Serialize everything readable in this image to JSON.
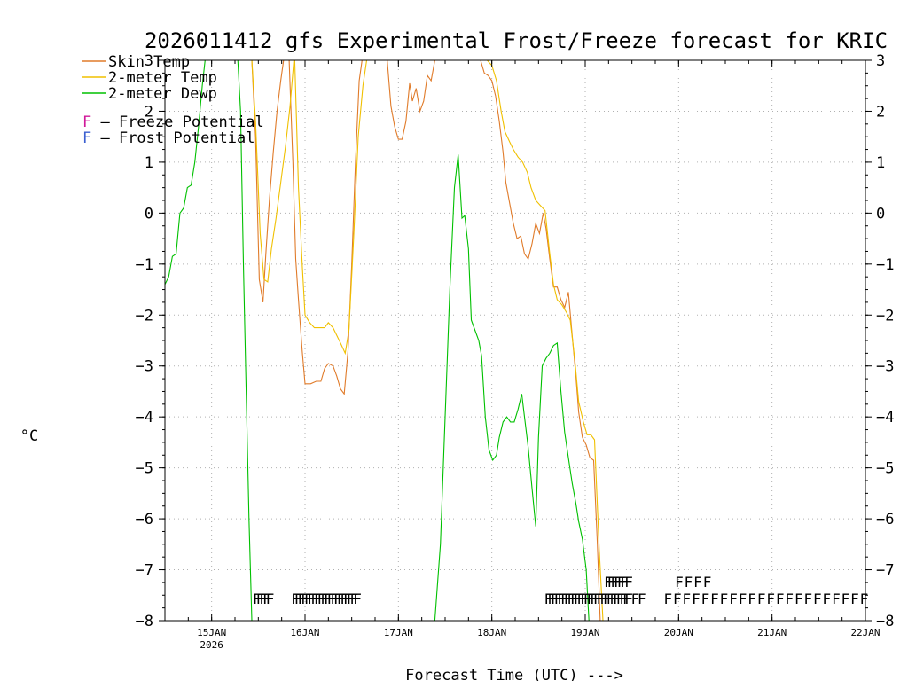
{
  "chart_data": {
    "type": "line",
    "title": "2026011412 gfs Experimental Frost/Freeze forecast for KRIC",
    "ylabel": "°C",
    "xlabel": "Forecast Time (UTC) --->",
    "ylim": [
      -8,
      3
    ],
    "yticks": [
      3,
      2,
      1,
      0,
      -1,
      -2,
      -3,
      -4,
      -5,
      -6,
      -7,
      -8
    ],
    "yticks_right": [
      3,
      2,
      1,
      0,
      -1,
      -2,
      -3,
      -4,
      -5,
      -6,
      -7,
      -8
    ],
    "xlim": [
      14.5,
      22.0
    ],
    "xticks": [
      {
        "x": 15,
        "label": "15JAN",
        "sub": "2026"
      },
      {
        "x": 16,
        "label": "16JAN",
        "sub": ""
      },
      {
        "x": 17,
        "label": "17JAN",
        "sub": ""
      },
      {
        "x": 18,
        "label": "18JAN",
        "sub": ""
      },
      {
        "x": 19,
        "label": "19JAN",
        "sub": ""
      },
      {
        "x": 20,
        "label": "20JAN",
        "sub": ""
      },
      {
        "x": 21,
        "label": "21JAN",
        "sub": ""
      },
      {
        "x": 22,
        "label": "22JAN",
        "sub": ""
      }
    ],
    "grid": true,
    "legend": [
      {
        "label": "Skin Temp",
        "color": "#e07b2a"
      },
      {
        "label": "2-meter Temp",
        "color": "#f0c000"
      },
      {
        "label": "2-meter Dewp",
        "color": "#00c000"
      }
    ],
    "potential_legend": [
      {
        "letter": "F",
        "text": " – Freeze Potential",
        "color": "#d0189a"
      },
      {
        "letter": "F",
        "text": " – Frost Potential",
        "color": "#3b5fd0"
      }
    ],
    "series": [
      {
        "name": "Skin Temp",
        "color": "#e07b2a",
        "points": [
          [
            15.43,
            3.0
          ],
          [
            15.47,
            1.5
          ],
          [
            15.51,
            -1.3
          ],
          [
            15.55,
            -1.75
          ],
          [
            15.58,
            -0.8
          ],
          [
            15.62,
            0.3
          ],
          [
            15.66,
            1.2
          ],
          [
            15.7,
            2.0
          ],
          [
            15.74,
            2.6
          ],
          [
            15.77,
            3.0
          ],
          [
            15.83,
            3.0
          ],
          [
            15.87,
            1.0
          ],
          [
            15.9,
            -0.9
          ],
          [
            15.93,
            -1.7
          ],
          [
            15.97,
            -2.7
          ],
          [
            16.0,
            -3.35
          ],
          [
            16.06,
            -3.35
          ],
          [
            16.12,
            -3.3
          ],
          [
            16.17,
            -3.3
          ],
          [
            16.21,
            -3.05
          ],
          [
            16.25,
            -2.95
          ],
          [
            16.3,
            -3.0
          ],
          [
            16.34,
            -3.2
          ],
          [
            16.38,
            -3.45
          ],
          [
            16.42,
            -3.55
          ],
          [
            16.46,
            -2.7
          ],
          [
            16.5,
            -1.0
          ],
          [
            16.54,
            1.0
          ],
          [
            16.58,
            2.6
          ],
          [
            16.61,
            3.0
          ],
          [
            16.88,
            3.0
          ],
          [
            16.92,
            2.1
          ],
          [
            16.96,
            1.7
          ],
          [
            17.0,
            1.45
          ],
          [
            17.04,
            1.45
          ],
          [
            17.08,
            1.8
          ],
          [
            17.12,
            2.55
          ],
          [
            17.15,
            2.2
          ],
          [
            17.19,
            2.45
          ],
          [
            17.23,
            2.0
          ],
          [
            17.27,
            2.2
          ],
          [
            17.31,
            2.7
          ],
          [
            17.35,
            2.6
          ],
          [
            17.39,
            3.0
          ],
          [
            17.88,
            3.0
          ],
          [
            17.92,
            2.75
          ],
          [
            17.96,
            2.7
          ],
          [
            18.0,
            2.6
          ],
          [
            18.04,
            2.3
          ],
          [
            18.08,
            1.8
          ],
          [
            18.12,
            1.2
          ],
          [
            18.15,
            0.6
          ],
          [
            18.19,
            0.2
          ],
          [
            18.23,
            -0.2
          ],
          [
            18.27,
            -0.5
          ],
          [
            18.31,
            -0.45
          ],
          [
            18.35,
            -0.8
          ],
          [
            18.39,
            -0.9
          ],
          [
            18.43,
            -0.6
          ],
          [
            18.47,
            -0.2
          ],
          [
            18.51,
            -0.4
          ],
          [
            18.55,
            0.0
          ],
          [
            18.58,
            -0.3
          ],
          [
            18.62,
            -0.9
          ],
          [
            18.66,
            -1.45
          ],
          [
            18.7,
            -1.45
          ],
          [
            18.74,
            -1.7
          ],
          [
            18.78,
            -1.85
          ],
          [
            18.82,
            -1.55
          ],
          [
            18.86,
            -2.4
          ],
          [
            18.9,
            -3.2
          ],
          [
            18.93,
            -3.9
          ],
          [
            18.97,
            -4.4
          ],
          [
            19.01,
            -4.55
          ],
          [
            19.05,
            -4.8
          ],
          [
            19.09,
            -4.85
          ],
          [
            19.13,
            -6.5
          ],
          [
            19.16,
            -8.0
          ]
        ]
      },
      {
        "name": "2-meter Temp",
        "color": "#f0c000",
        "points": [
          [
            15.43,
            3.0
          ],
          [
            15.47,
            1.8
          ],
          [
            15.52,
            -0.4
          ],
          [
            15.56,
            -1.3
          ],
          [
            15.6,
            -1.35
          ],
          [
            15.64,
            -0.7
          ],
          [
            15.69,
            -0.1
          ],
          [
            15.74,
            0.6
          ],
          [
            15.79,
            1.3
          ],
          [
            15.84,
            2.1
          ],
          [
            15.88,
            3.0
          ],
          [
            15.89,
            3.0
          ],
          [
            15.93,
            0.5
          ],
          [
            15.97,
            -1.0
          ],
          [
            16.0,
            -2.0
          ],
          [
            16.05,
            -2.15
          ],
          [
            16.1,
            -2.25
          ],
          [
            16.16,
            -2.25
          ],
          [
            16.21,
            -2.25
          ],
          [
            16.25,
            -2.15
          ],
          [
            16.3,
            -2.25
          ],
          [
            16.34,
            -2.4
          ],
          [
            16.38,
            -2.55
          ],
          [
            16.43,
            -2.75
          ],
          [
            16.47,
            -2.3
          ],
          [
            16.52,
            -0.5
          ],
          [
            16.57,
            1.5
          ],
          [
            16.62,
            2.5
          ],
          [
            16.66,
            3.0
          ],
          [
            17.95,
            3.0
          ],
          [
            18.0,
            2.9
          ],
          [
            18.05,
            2.6
          ],
          [
            18.1,
            2.0
          ],
          [
            18.14,
            1.6
          ],
          [
            18.19,
            1.4
          ],
          [
            18.23,
            1.25
          ],
          [
            18.28,
            1.1
          ],
          [
            18.33,
            1.0
          ],
          [
            18.38,
            0.8
          ],
          [
            18.42,
            0.5
          ],
          [
            18.47,
            0.25
          ],
          [
            18.52,
            0.15
          ],
          [
            18.57,
            0.05
          ],
          [
            18.62,
            -0.8
          ],
          [
            18.66,
            -1.4
          ],
          [
            18.7,
            -1.7
          ],
          [
            18.75,
            -1.8
          ],
          [
            18.8,
            -1.95
          ],
          [
            18.84,
            -2.1
          ],
          [
            18.89,
            -2.9
          ],
          [
            18.93,
            -3.7
          ],
          [
            18.98,
            -4.1
          ],
          [
            19.02,
            -4.35
          ],
          [
            19.06,
            -4.35
          ],
          [
            19.1,
            -4.45
          ],
          [
            19.15,
            -6.6
          ],
          [
            19.19,
            -8.0
          ]
        ]
      },
      {
        "name": "2-meter Dewp",
        "color": "#00c000",
        "points": [
          [
            14.5,
            -1.4
          ],
          [
            14.54,
            -1.25
          ],
          [
            14.58,
            -0.85
          ],
          [
            14.62,
            -0.8
          ],
          [
            14.66,
            -0.0
          ],
          [
            14.7,
            0.1
          ],
          [
            14.74,
            0.5
          ],
          [
            14.78,
            0.55
          ],
          [
            14.82,
            1.0
          ],
          [
            14.86,
            1.7
          ],
          [
            14.9,
            2.5
          ],
          [
            14.93,
            3.0
          ],
          [
            15.28,
            3.0
          ],
          [
            15.31,
            2.0
          ],
          [
            15.34,
            -1.0
          ],
          [
            15.37,
            -3.5
          ],
          [
            15.4,
            -6.0
          ],
          [
            15.43,
            -8.0
          ],
          [
            17.39,
            -8.0
          ],
          [
            17.45,
            -6.5
          ],
          [
            17.5,
            -4.0
          ],
          [
            17.55,
            -1.5
          ],
          [
            17.6,
            0.5
          ],
          [
            17.64,
            1.15
          ],
          [
            17.68,
            -0.1
          ],
          [
            17.71,
            -0.05
          ],
          [
            17.75,
            -0.7
          ],
          [
            17.78,
            -2.1
          ],
          [
            17.82,
            -2.3
          ],
          [
            17.86,
            -2.5
          ],
          [
            17.89,
            -2.8
          ],
          [
            17.93,
            -4.0
          ],
          [
            17.97,
            -4.65
          ],
          [
            18.01,
            -4.85
          ],
          [
            18.05,
            -4.75
          ],
          [
            18.08,
            -4.4
          ],
          [
            18.12,
            -4.1
          ],
          [
            18.16,
            -4.0
          ],
          [
            18.2,
            -4.1
          ],
          [
            18.24,
            -4.1
          ],
          [
            18.28,
            -3.85
          ],
          [
            18.32,
            -3.55
          ],
          [
            18.35,
            -4.0
          ],
          [
            18.39,
            -4.6
          ],
          [
            18.43,
            -5.4
          ],
          [
            18.47,
            -6.15
          ],
          [
            18.5,
            -4.4
          ],
          [
            18.54,
            -3.0
          ],
          [
            18.58,
            -2.85
          ],
          [
            18.62,
            -2.75
          ],
          [
            18.66,
            -2.6
          ],
          [
            18.7,
            -2.55
          ],
          [
            18.74,
            -3.5
          ],
          [
            18.78,
            -4.3
          ],
          [
            18.82,
            -4.8
          ],
          [
            18.86,
            -5.3
          ],
          [
            18.9,
            -5.7
          ],
          [
            18.93,
            -6.05
          ],
          [
            18.97,
            -6.4
          ],
          [
            19.01,
            -7.0
          ],
          [
            19.04,
            -8.0
          ]
        ]
      }
    ],
    "freeze_potential": {
      "color": "#d0189a",
      "y": -7.55,
      "groups": [
        {
          "start": 15.44,
          "count": 5,
          "step": 0.035
        },
        {
          "start": 15.85,
          "count": 20,
          "step": 0.035
        },
        {
          "start": 18.56,
          "count": 25,
          "step": 0.035
        },
        {
          "start": 19.42,
          "count": 3,
          "step": 0.07
        },
        {
          "start": 19.84,
          "count": 22,
          "step": 0.1
        }
      ]
    },
    "frost_potential": {
      "color": "#3b5fd0",
      "y": -7.22,
      "groups": [
        {
          "start": 19.2,
          "count": 6,
          "step": 0.035
        },
        {
          "start": 19.42,
          "count": 1,
          "step": 0.07
        },
        {
          "start": 19.96,
          "count": 4,
          "step": 0.1
        }
      ]
    }
  }
}
